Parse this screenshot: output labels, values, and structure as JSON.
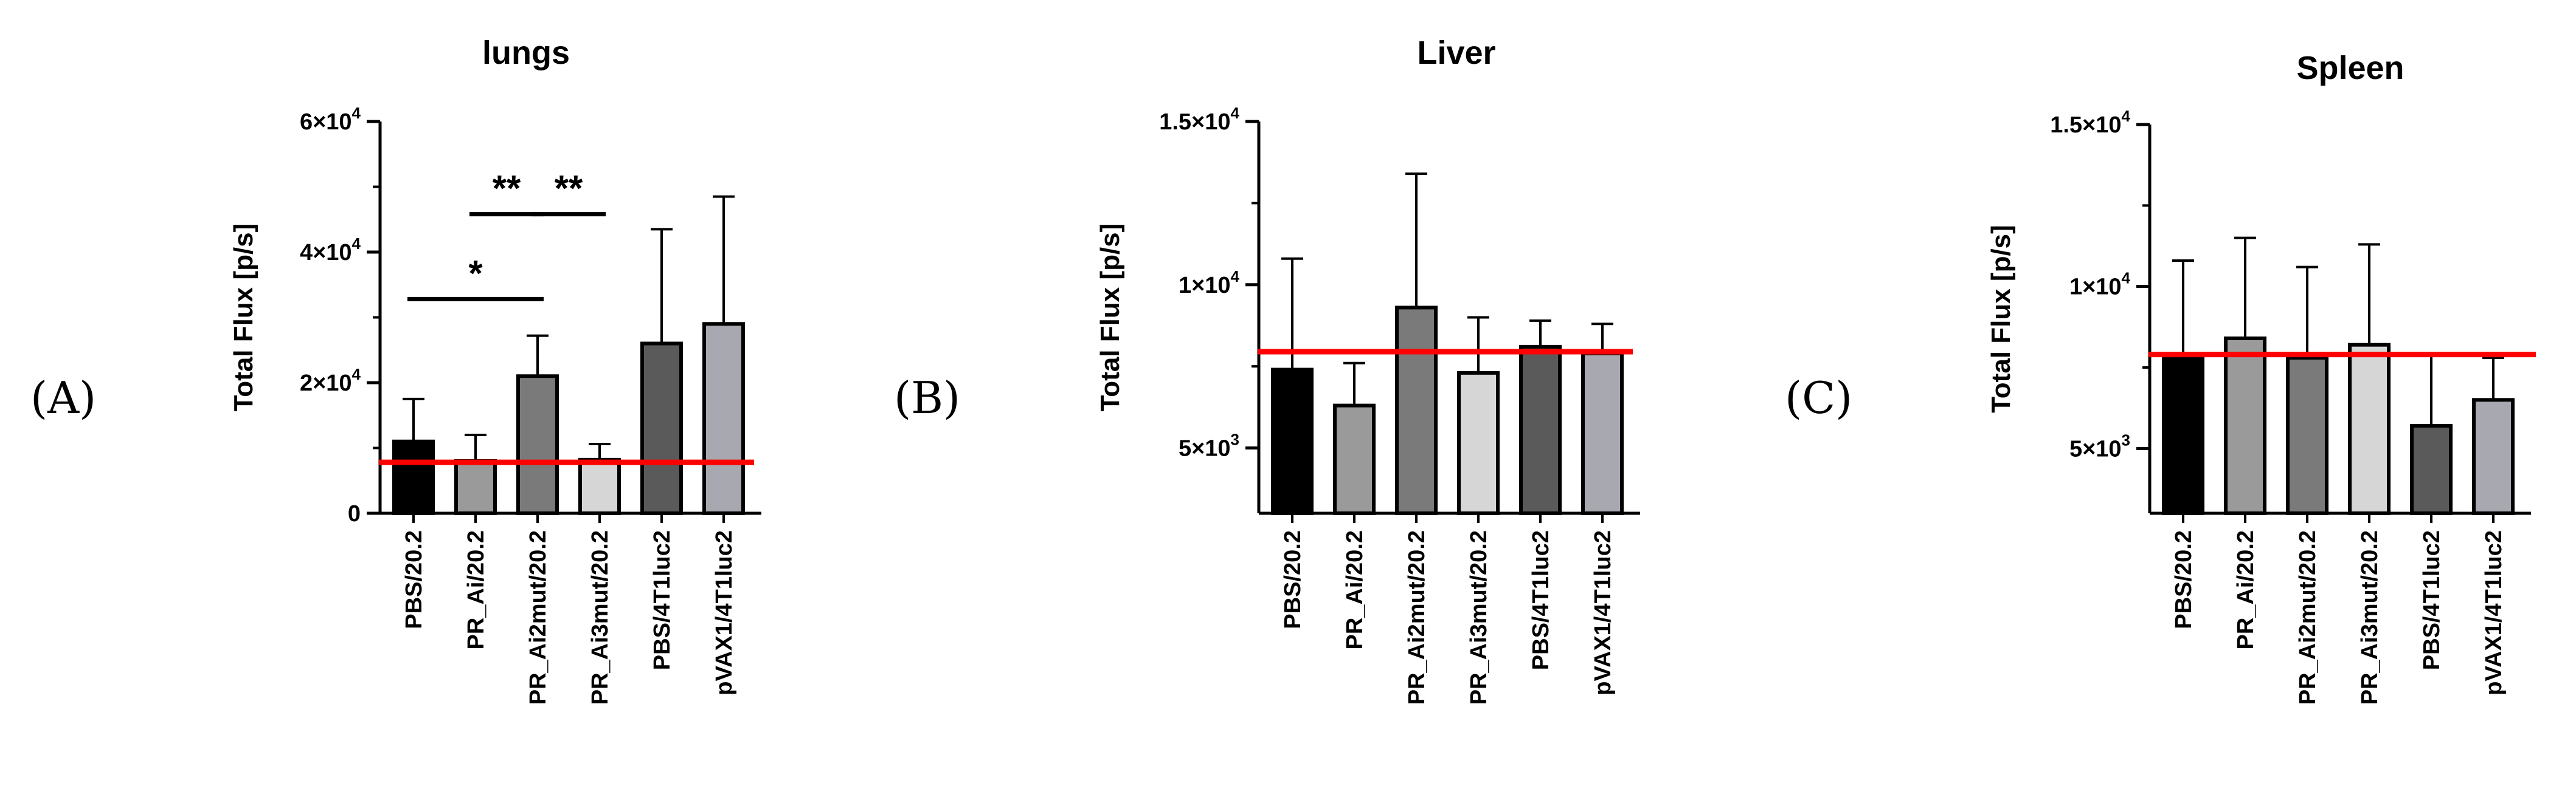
{
  "panel_letters": [
    "(A)",
    "(B)",
    "(C)"
  ],
  "colors": {
    "reference_line": "#ff0000",
    "bar_edge": "#000000",
    "bar_fills": [
      "#000000",
      "#9a9a9a",
      "#7a7a7a",
      "#d6d6d6",
      "#5a5a5a",
      "#a8a8b0"
    ]
  },
  "chart_data": [
    {
      "type": "bar",
      "title": "lungs",
      "ylabel": "Total Flux [p/s]",
      "xlabel": "",
      "ylim": [
        0,
        60000
      ],
      "yticks": [
        {
          "value": 0,
          "base": "0",
          "exp": ""
        },
        {
          "value": 20000,
          "base": "2×10",
          "exp": "4"
        },
        {
          "value": 40000,
          "base": "4×10",
          "exp": "4"
        },
        {
          "value": 60000,
          "base": "6×10",
          "exp": "4"
        }
      ],
      "categories": [
        "PBS/20.2",
        "PR_Ai/20.2",
        "PR_Ai2mut/20.2",
        "PR_Ai3mut/20.2",
        "PBS/4T1luc2",
        "pVAX1/4T1luc2"
      ],
      "values": [
        11000,
        8000,
        21000,
        8200,
        26000,
        29000
      ],
      "error_upper": [
        17500,
        12000,
        27200,
        10600,
        43500,
        48500
      ],
      "reference_line": 7800,
      "significance": [
        {
          "from": 0,
          "to": 2,
          "label": "*",
          "y": 32800
        },
        {
          "from": 1,
          "to": 2,
          "label": "**",
          "y": 45800
        },
        {
          "from": 2,
          "to": 3,
          "label": "**",
          "y": 45800
        }
      ]
    },
    {
      "type": "bar",
      "title": "Liver",
      "ylabel": "Total Flux [p/s]",
      "xlabel": "",
      "ylim": [
        3000,
        15000
      ],
      "yticks": [
        {
          "value": 5000,
          "base": "5×10",
          "exp": "3"
        },
        {
          "value": 10000,
          "base": "1×10",
          "exp": "4"
        },
        {
          "value": 15000,
          "base": "1.5×10",
          "exp": "4"
        }
      ],
      "categories": [
        "PBS/20.2",
        "PR_Ai/20.2",
        "PR_Ai2mut/20.2",
        "PR_Ai3mut/20.2",
        "PBS/4T1luc2",
        "pVAX1/4T1luc2"
      ],
      "values": [
        7400,
        6300,
        9300,
        7300,
        8100,
        7900
      ],
      "error_upper": [
        10800,
        7600,
        13400,
        9000,
        8900,
        8800
      ],
      "reference_line": 7950,
      "significance": []
    },
    {
      "type": "bar",
      "title": "Spleen",
      "ylabel": "Total Flux [p/s]",
      "xlabel": "",
      "ylim": [
        3000,
        15000
      ],
      "yticks": [
        {
          "value": 5000,
          "base": "5×10",
          "exp": "3"
        },
        {
          "value": 10000,
          "base": "1×10",
          "exp": "4"
        },
        {
          "value": 15000,
          "base": "1.5×10",
          "exp": "4"
        }
      ],
      "categories": [
        "PBS/20.2",
        "PR_Ai/20.2",
        "PR_Ai2mut/20.2",
        "PR_Ai3mut/20.2",
        "PBS/4T1luc2",
        "pVAX1/4T1luc2"
      ],
      "values": [
        7900,
        8400,
        7800,
        8200,
        5700,
        6500
      ],
      "error_upper": [
        10800,
        11500,
        10600,
        11300,
        7900,
        7800
      ],
      "reference_line": 7900,
      "significance": []
    }
  ]
}
